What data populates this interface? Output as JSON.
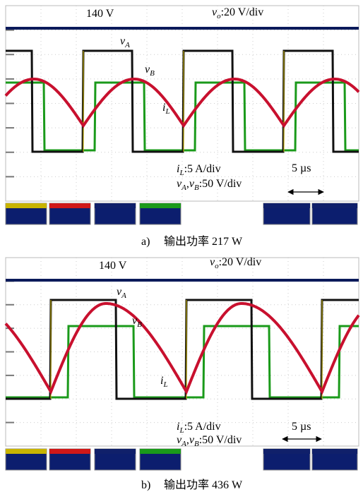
{
  "panels": [
    {
      "label": "a)",
      "caption": "输出功率 217 W",
      "vo_level": "140 V",
      "vo_scale": {
        "symbol": "v",
        "sub": "o",
        "text": ":20 V/div"
      },
      "vA": {
        "symbol": "v",
        "sub": "A"
      },
      "vB": {
        "symbol": "v",
        "sub": "B"
      },
      "iL": {
        "symbol": "i",
        "sub": "L"
      },
      "iL_scale": {
        "symbol": "i",
        "sub": "L",
        "text": ":5 A/div"
      },
      "v_scale": {
        "symbol1": "v",
        "sub1": "A",
        "sep": ",",
        "symbol2": "v",
        "sub2": "B",
        "text": ":50 V/div"
      },
      "time_scale": "5 µs"
    },
    {
      "label": "b)",
      "caption": "输出功率 436 W",
      "vo_level": "140 V",
      "vo_scale": {
        "symbol": "v",
        "sub": "o",
        "text": ":20 V/div"
      },
      "vA": {
        "symbol": "v",
        "sub": "A"
      },
      "vB": {
        "symbol": "v",
        "sub": "B"
      },
      "iL": {
        "symbol": "i",
        "sub": "L"
      },
      "iL_scale": {
        "symbol": "i",
        "sub": "L",
        "text": ":5 A/div"
      },
      "v_scale": {
        "symbol1": "v",
        "sub1": "A",
        "sep": ",",
        "symbol2": "v",
        "sub2": "B",
        "text": ":50 V/div"
      },
      "time_scale": "5 µs"
    }
  ]
}
